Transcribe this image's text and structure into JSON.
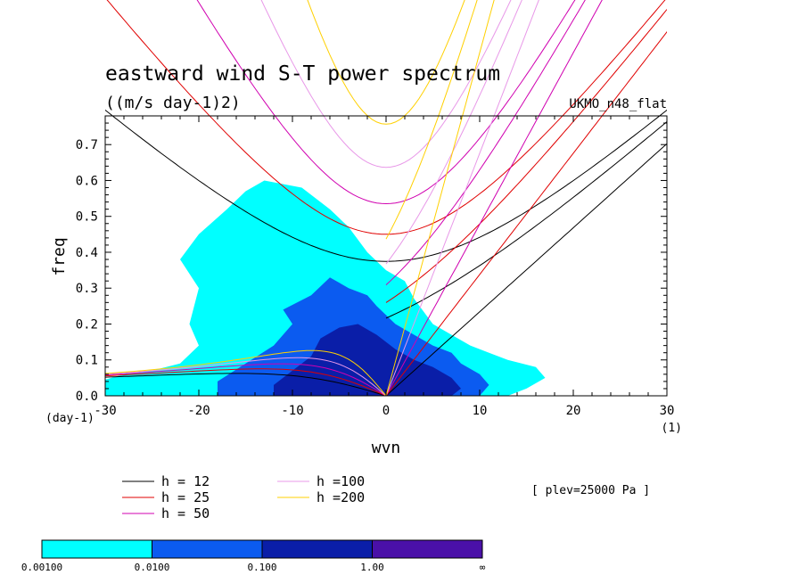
{
  "chart_data": {
    "type": "heatmap",
    "title": "eastward wind S-T power spectrum",
    "units": "((m/s day-1)2)",
    "model": "UKMO_n48_flat",
    "xlabel": "wvn",
    "xunit": "(1)",
    "ylabel": "freq",
    "yunit": "(day-1)",
    "level_note": "[ plev=25000 Pa ]",
    "xlim": [
      -30,
      30
    ],
    "ylim": [
      0,
      0.78
    ],
    "xticks": [
      "-30",
      "-20",
      "-10",
      "0",
      "10",
      "20",
      "30"
    ],
    "yticks": [
      "0.0",
      "0.1",
      "0.2",
      "0.3",
      "0.4",
      "0.5",
      "0.6",
      "0.7"
    ],
    "colorbar": {
      "bounds": [
        "0.00100",
        "0.0100",
        "0.100",
        "1.00",
        "∞"
      ],
      "colors": [
        "#00ffff",
        "#0b5bf0",
        "#0a1ea8",
        "#4a10a8"
      ]
    },
    "dispersion_curves": [
      {
        "label": "h = 12",
        "h": 12,
        "color": "#000000"
      },
      {
        "label": "h = 25",
        "h": 25,
        "color": "#e00000"
      },
      {
        "label": "h = 50",
        "h": 50,
        "color": "#d000b0"
      },
      {
        "label": "h =100",
        "h": 100,
        "color": "#e898e8"
      },
      {
        "label": "h =200",
        "h": 200,
        "color": "#ffd000"
      }
    ],
    "power_regions": [
      {
        "level": 1,
        "points": [
          [
            -30,
            0
          ],
          [
            -30,
            0.045
          ],
          [
            -28,
            0.06
          ],
          [
            -25,
            0.07
          ],
          [
            -22,
            0.09
          ],
          [
            -20,
            0.14
          ],
          [
            -21,
            0.2
          ],
          [
            -20,
            0.3
          ],
          [
            -22,
            0.38
          ],
          [
            -20,
            0.45
          ],
          [
            -17,
            0.52
          ],
          [
            -15,
            0.57
          ],
          [
            -13,
            0.6
          ],
          [
            -9,
            0.58
          ],
          [
            -6,
            0.52
          ],
          [
            -4,
            0.47
          ],
          [
            -2,
            0.4
          ],
          [
            0,
            0.35
          ],
          [
            2,
            0.32
          ],
          [
            3,
            0.27
          ],
          [
            5,
            0.2
          ],
          [
            7,
            0.17
          ],
          [
            9,
            0.14
          ],
          [
            11,
            0.12
          ],
          [
            13,
            0.1
          ],
          [
            16,
            0.08
          ],
          [
            17,
            0.05
          ],
          [
            15,
            0.02
          ],
          [
            13,
            0
          ]
        ]
      },
      {
        "level": 2,
        "points": [
          [
            -18,
            0
          ],
          [
            -18,
            0.04
          ],
          [
            -15,
            0.09
          ],
          [
            -12,
            0.14
          ],
          [
            -10,
            0.2
          ],
          [
            -11,
            0.24
          ],
          [
            -8,
            0.28
          ],
          [
            -6,
            0.33
          ],
          [
            -4,
            0.3
          ],
          [
            -2,
            0.28
          ],
          [
            -1,
            0.25
          ],
          [
            1,
            0.2
          ],
          [
            3,
            0.17
          ],
          [
            5,
            0.14
          ],
          [
            7,
            0.12
          ],
          [
            8,
            0.09
          ],
          [
            10,
            0.06
          ],
          [
            11,
            0.03
          ],
          [
            10,
            0
          ]
        ]
      },
      {
        "level": 3,
        "points": [
          [
            -12,
            0
          ],
          [
            -12,
            0.03
          ],
          [
            -10,
            0.07
          ],
          [
            -8,
            0.11
          ],
          [
            -7,
            0.16
          ],
          [
            -5,
            0.19
          ],
          [
            -3,
            0.2
          ],
          [
            -1,
            0.17
          ],
          [
            1,
            0.13
          ],
          [
            3,
            0.1
          ],
          [
            5,
            0.08
          ],
          [
            7,
            0.05
          ],
          [
            8,
            0.02
          ],
          [
            7,
            0
          ]
        ]
      }
    ]
  }
}
